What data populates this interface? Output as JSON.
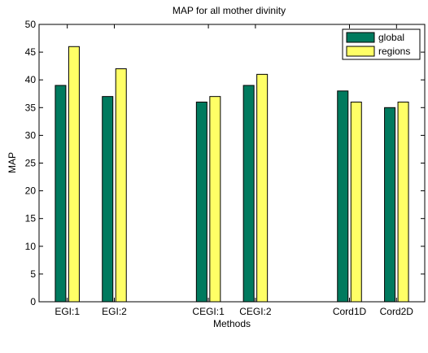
{
  "chart_data": {
    "type": "bar",
    "title": "MAP for all mother divinity",
    "xlabel": "Methods",
    "ylabel": "MAP",
    "ylim": [
      0,
      50
    ],
    "yticks": [
      0,
      5,
      10,
      15,
      20,
      25,
      30,
      35,
      40,
      45,
      50
    ],
    "grid": false,
    "legend_position": "top-right",
    "categories": [
      "EGI:1",
      "EGI:2",
      "CEGI:1",
      "CEGI:2",
      "Cord1D",
      "Cord2D"
    ],
    "category_positions": [
      1,
      2,
      4,
      5,
      7,
      8
    ],
    "x_range": [
      0.4,
      8.6
    ],
    "series": [
      {
        "name": "global",
        "color": "#007a5e",
        "values": [
          39,
          37,
          36,
          39,
          38,
          35
        ]
      },
      {
        "name": "regions",
        "color": "#ffff66",
        "values": [
          46,
          42,
          37,
          41,
          36,
          36
        ]
      }
    ]
  }
}
